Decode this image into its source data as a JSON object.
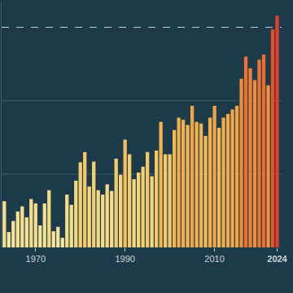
{
  "chart_data": {
    "type": "bar",
    "x": [
      1963,
      1964,
      1965,
      1966,
      1967,
      1968,
      1969,
      1970,
      1971,
      1972,
      1973,
      1974,
      1975,
      1976,
      1977,
      1978,
      1979,
      1980,
      1981,
      1982,
      1983,
      1984,
      1985,
      1986,
      1987,
      1988,
      1989,
      1990,
      1991,
      1992,
      1993,
      1994,
      1995,
      1996,
      1997,
      1998,
      1999,
      2000,
      2001,
      2002,
      2003,
      2004,
      2005,
      2006,
      2007,
      2008,
      2009,
      2010,
      2011,
      2012,
      2013,
      2014,
      2015,
      2016,
      2017,
      2018,
      2019,
      2020,
      2021,
      2022,
      2023,
      2024
    ],
    "values": [
      0.63,
      0.21,
      0.36,
      0.49,
      0.56,
      0.41,
      0.66,
      0.6,
      0.3,
      0.6,
      0.78,
      0.22,
      0.28,
      0.13,
      0.72,
      0.58,
      0.91,
      1.16,
      1.3,
      0.83,
      1.17,
      0.78,
      0.72,
      0.86,
      0.77,
      1.21,
      0.99,
      1.47,
      1.27,
      0.93,
      1.02,
      1.1,
      1.3,
      0.97,
      1.32,
      1.71,
      1.27,
      1.27,
      1.6,
      1.77,
      1.74,
      1.67,
      1.93,
      1.71,
      1.69,
      1.52,
      1.77,
      1.93,
      1.63,
      1.77,
      1.82,
      1.88,
      1.93,
      2.3,
      2.6,
      2.44,
      2.28,
      2.56,
      2.63,
      2.21,
      2.97,
      3.16
    ],
    "xlim": [
      1962.4,
      2025.0
    ],
    "xticks": [
      1970,
      1990,
      2010,
      2024
    ],
    "ylim": [
      0,
      3.35
    ],
    "yticks": [
      0,
      1,
      2,
      3
    ],
    "grid": true,
    "tick_labels": "x"
  }
}
